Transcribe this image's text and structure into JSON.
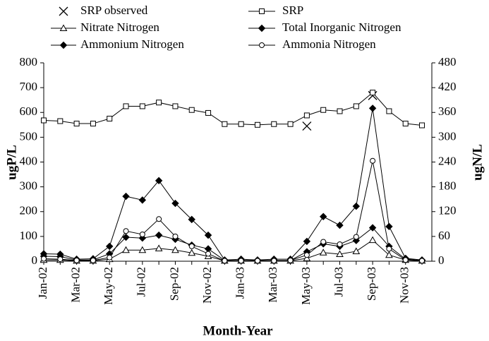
{
  "chart_data": {
    "type": "line",
    "x_label": "Month-Year",
    "y_label": "ugP/L",
    "y2_label": "ugN/L",
    "categories": [
      "Jan-02",
      null,
      "Mar-02",
      null,
      "May-02",
      null,
      "Jul-02",
      null,
      "Sep-02",
      null,
      "Nov-02",
      null,
      "Jan-03",
      null,
      "Mar-03",
      null,
      "May-03",
      null,
      "Jul-03",
      null,
      "Sep-03",
      null,
      "Nov-03",
      null
    ],
    "ylim": [
      0,
      800
    ],
    "yticks": [
      0,
      100,
      200,
      300,
      400,
      500,
      600,
      700,
      800
    ],
    "y2lim": [
      0,
      480
    ],
    "y2ticks": [
      0,
      60,
      120,
      180,
      240,
      300,
      360,
      420,
      480
    ],
    "series": [
      {
        "name": "SRP observed",
        "color": "#000000",
        "marker": "x",
        "show_line": false,
        "axis": "y",
        "values": [
          null,
          null,
          null,
          null,
          null,
          null,
          null,
          null,
          null,
          null,
          null,
          null,
          null,
          null,
          null,
          null,
          545,
          null,
          null,
          null,
          668,
          null,
          null,
          null
        ]
      },
      {
        "name": "SRP",
        "color": "#000000",
        "marker": "square-open",
        "axis": "y",
        "values": [
          568,
          565,
          555,
          555,
          575,
          625,
          625,
          640,
          625,
          610,
          598,
          553,
          553,
          550,
          553,
          553,
          588,
          610,
          605,
          625,
          680,
          605,
          555,
          548
        ]
      },
      {
        "name": "Nitrate Nitrogen",
        "color": "#000000",
        "marker": "triangle-open",
        "axis": "y2",
        "values": [
          3,
          3,
          1,
          1,
          5,
          27,
          27,
          31,
          27,
          20,
          12,
          1,
          1,
          1,
          1,
          1,
          7,
          21,
          17,
          24,
          51,
          15,
          3,
          1
        ]
      },
      {
        "name": "Total Inorganic Nitrogen",
        "color": "#000000",
        "marker": "diamond",
        "axis": "y2",
        "values": [
          18,
          17,
          5,
          6,
          36,
          157,
          148,
          195,
          140,
          101,
          63,
          3,
          5,
          3,
          5,
          5,
          48,
          108,
          87,
          133,
          370,
          84,
          7,
          3
        ]
      },
      {
        "name": "Ammonium Nitrogen",
        "color": "#000000",
        "marker": "diamond",
        "axis": "y2",
        "values": [
          12,
          11,
          3,
          3,
          18,
          58,
          56,
          63,
          53,
          39,
          30,
          2,
          2,
          2,
          2,
          2,
          23,
          42,
          36,
          50,
          81,
          36,
          5,
          2
        ]
      },
      {
        "name": "Ammonia Nitrogen",
        "color": "#000000",
        "marker": "circle-open",
        "axis": "y2",
        "values": [
          6,
          5,
          2,
          2,
          9,
          73,
          65,
          102,
          60,
          36,
          18,
          1,
          1,
          1,
          1,
          2,
          15,
          47,
          41,
          59,
          243,
          30,
          3,
          1
        ]
      }
    ]
  }
}
